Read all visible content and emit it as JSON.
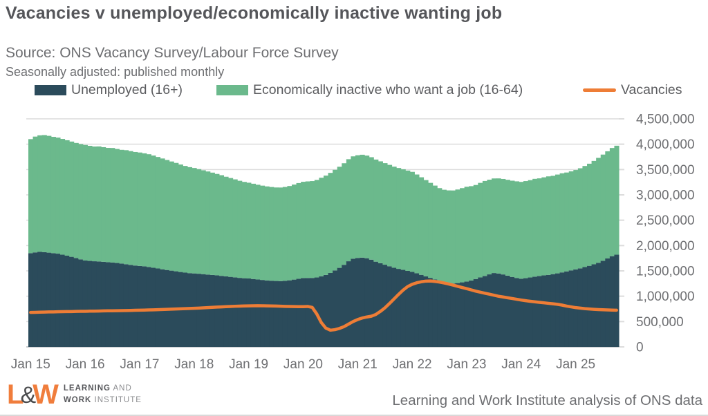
{
  "header": {
    "title": "Vacancies v unemployed/economically inactive wanting job",
    "source": "Source: ONS Vacancy Survey/Labour Force Survey",
    "note": "Seasonally adjusted: published monthly"
  },
  "footer": {
    "logo": {
      "l": "L",
      "amp": "&",
      "w": "W",
      "line1_bold": "LEARNING",
      "line1_rest": " AND",
      "line2_bold": "WORK",
      "line2_rest": " INSTITUTE"
    },
    "credit": "Learning and Work Institute analysis of ONS data"
  },
  "colors": {
    "unemployed": "#2b4b5b",
    "inactive": "#6bb98c",
    "vacancies": "#ee7d36",
    "gridline": "#dcdcdc",
    "zero_axis": "#c6c9cc",
    "axis_text": "#6e6f72"
  },
  "chart_data": {
    "type": "bar",
    "subtype": "stacked-monthly-bars-with-line",
    "x_start": "Jan 2015",
    "x_end": "Oct 2025",
    "value_unit": "thousands of people / vacancies",
    "ylim": [
      0,
      4500000
    ],
    "y_ticks": [
      0,
      500000,
      1000000,
      1500000,
      2000000,
      2500000,
      3000000,
      3500000,
      4000000,
      4500000
    ],
    "y_tick_labels": [
      "0",
      "500,000",
      "1,000,000",
      "1,500,000",
      "2,000,000",
      "2,500,000",
      "3,000,000",
      "3,500,000",
      "4,000,000",
      "4,500,000"
    ],
    "x_tick_labels": [
      "Jan 15",
      "Jan 16",
      "Jan 17",
      "Jan 18",
      "Jan 19",
      "Jan 20",
      "Jan 21",
      "Jan 22",
      "Jan 23",
      "Jan 24",
      "Jan 25"
    ],
    "x_tick_indices": [
      0,
      12,
      24,
      36,
      48,
      60,
      72,
      84,
      96,
      108,
      120
    ],
    "series": [
      {
        "name": "Unemployed (16+)",
        "type": "bar-stack",
        "color": "#2b4b5b",
        "values": [
          1850,
          1865,
          1875,
          1870,
          1860,
          1850,
          1840,
          1820,
          1800,
          1778,
          1755,
          1728,
          1705,
          1697,
          1690,
          1686,
          1680,
          1672,
          1665,
          1656,
          1645,
          1632,
          1618,
          1606,
          1598,
          1590,
          1578,
          1562,
          1548,
          1532,
          1518,
          1505,
          1492,
          1478,
          1466,
          1456,
          1450,
          1444,
          1436,
          1427,
          1420,
          1412,
          1402,
          1392,
          1382,
          1372,
          1362,
          1355,
          1350,
          1340,
          1330,
          1321,
          1312,
          1306,
          1301,
          1299,
          1305,
          1314,
          1328,
          1344,
          1358,
          1360,
          1361,
          1370,
          1394,
          1420,
          1459,
          1509,
          1560,
          1620,
          1690,
          1740,
          1756,
          1762,
          1750,
          1722,
          1682,
          1652,
          1622,
          1592,
          1562,
          1540,
          1520,
          1500,
          1480,
          1452,
          1422,
          1392,
          1362,
          1332,
          1302,
          1281,
          1262,
          1252,
          1260,
          1274,
          1290,
          1311,
          1340,
          1371,
          1400,
          1431,
          1458,
          1449,
          1430,
          1406,
          1381,
          1361,
          1346,
          1356,
          1370,
          1386,
          1400,
          1411,
          1421,
          1436,
          1451,
          1470,
          1490,
          1510,
          1530,
          1550,
          1575,
          1600,
          1630,
          1660,
          1700,
          1745,
          1790,
          1820
        ]
      },
      {
        "name": "Economically inactive who want a job (16-64)",
        "type": "bar-stack",
        "color": "#6bb98c",
        "values": [
          2250,
          2285,
          2300,
          2310,
          2305,
          2295,
          2290,
          2284,
          2278,
          2274,
          2270,
          2275,
          2280,
          2271,
          2264,
          2270,
          2261,
          2255,
          2260,
          2250,
          2244,
          2250,
          2246,
          2240,
          2238,
          2230,
          2224,
          2214,
          2200,
          2186,
          2170,
          2154,
          2139,
          2121,
          2105,
          2091,
          2080,
          2064,
          2049,
          2035,
          2019,
          2001,
          1986,
          1966,
          1950,
          1934,
          1916,
          1901,
          1890,
          1880,
          1870,
          1861,
          1855,
          1849,
          1845,
          1846,
          1851,
          1861,
          1875,
          1889,
          1900,
          1906,
          1911,
          1925,
          1944,
          1960,
          1975,
          1985,
          1995,
          2004,
          2014,
          2020,
          2026,
          2030,
          2025,
          2021,
          2015,
          2010,
          2004,
          2000,
          1995,
          1990,
          1985,
          1980,
          1974,
          1950,
          1925,
          1900,
          1875,
          1851,
          1831,
          1820,
          1826,
          1835,
          1846,
          1859,
          1870,
          1861,
          1855,
          1866,
          1874,
          1869,
          1866,
          1876,
          1884,
          1891,
          1899,
          1906,
          1910,
          1916,
          1921,
          1930,
          1926,
          1935,
          1944,
          1940,
          1950,
          1956,
          1951,
          1955,
          1960,
          1975,
          1995,
          2015,
          2040,
          2070,
          2095,
          2115,
          2135,
          2150
        ]
      },
      {
        "name": "Vacancies",
        "type": "line",
        "color": "#ee7d36",
        "values": [
          680,
          682,
          685,
          687,
          690,
          691,
          693,
          695,
          697,
          698,
          700,
          702,
          703,
          705,
          706,
          708,
          710,
          712,
          713,
          715,
          716,
          718,
          720,
          722,
          724,
          726,
          729,
          732,
          735,
          738,
          742,
          745,
          748,
          752,
          755,
          758,
          762,
          766,
          770,
          775,
          780,
          785,
          790,
          795,
          798,
          802,
          805,
          808,
          810,
          812,
          813,
          812,
          810,
          808,
          806,
          803,
          800,
          798,
          796,
          795,
          795,
          798,
          780,
          650,
          480,
          370,
          330,
          340,
          365,
          400,
          450,
          500,
          540,
          570,
          590,
          605,
          640,
          700,
          770,
          855,
          945,
          1035,
          1120,
          1190,
          1235,
          1265,
          1285,
          1298,
          1300,
          1292,
          1280,
          1262,
          1242,
          1220,
          1196,
          1172,
          1150,
          1125,
          1100,
          1080,
          1060,
          1040,
          1020,
          1000,
          985,
          970,
          955,
          940,
          925,
          912,
          900,
          890,
          880,
          870,
          860,
          850,
          840,
          825,
          805,
          790,
          775,
          765,
          755,
          748,
          742,
          737,
          733,
          729,
          726,
          724
        ]
      }
    ]
  }
}
